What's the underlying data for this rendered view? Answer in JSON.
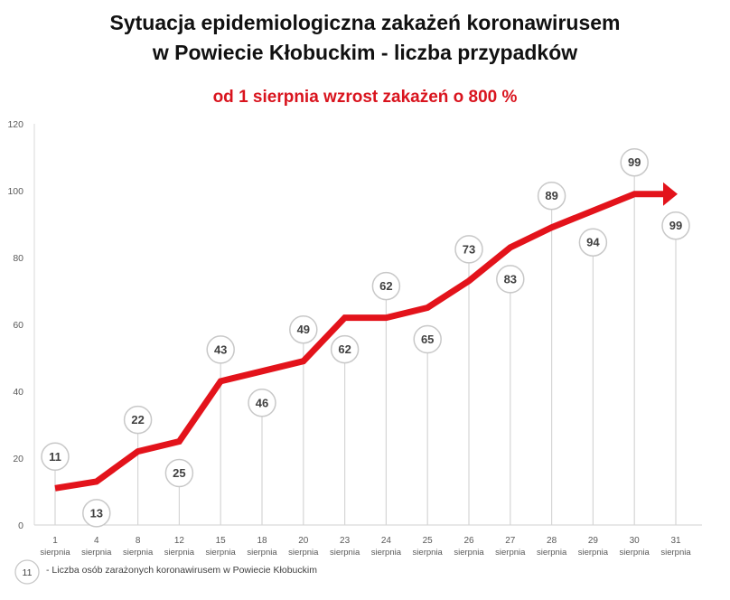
{
  "chart_data": {
    "type": "line",
    "title_line1": "Sytuacja epidemiologiczna zakażeń koronawirusem",
    "title_line2": "w Powiecie Kłobuckim - liczba przypadków",
    "subtitle": "od 1 sierpnia wzrost zakażeń o 800 %",
    "ylim": [
      0,
      120
    ],
    "yticks": [
      "0",
      "20",
      "40",
      "60",
      "80",
      "100",
      "120"
    ],
    "categories": [
      {
        "day": "1",
        "month": "sierpnia"
      },
      {
        "day": "4",
        "month": "sierpnia"
      },
      {
        "day": "8",
        "month": "sierpnia"
      },
      {
        "day": "12",
        "month": "sierpnia"
      },
      {
        "day": "15",
        "month": "sierpnia"
      },
      {
        "day": "18",
        "month": "sierpnia"
      },
      {
        "day": "20",
        "month": "sierpnia"
      },
      {
        "day": "23",
        "month": "sierpnia"
      },
      {
        "day": "24",
        "month": "sierpnia"
      },
      {
        "day": "25",
        "month": "sierpnia"
      },
      {
        "day": "26",
        "month": "sierpnia"
      },
      {
        "day": "27",
        "month": "sierpnia"
      },
      {
        "day": "28",
        "month": "sierpnia"
      },
      {
        "day": "29",
        "month": "sierpnia"
      },
      {
        "day": "30",
        "month": "sierpnia"
      },
      {
        "day": "31",
        "month": "sierpnia"
      }
    ],
    "series": [
      {
        "name": "Liczba osób zarażonych koronawirusem w Powiecie Kłobuckim",
        "values": [
          11,
          13,
          22,
          25,
          43,
          46,
          49,
          62,
          62,
          65,
          73,
          83,
          89,
          94,
          99,
          99
        ]
      }
    ],
    "label_values": [
      11,
      13,
      22,
      25,
      43,
      46,
      49,
      62,
      62,
      65,
      73,
      83,
      89,
      94,
      99,
      99
    ],
    "label_placement": [
      "above",
      "below",
      "above",
      "below",
      "above",
      "below",
      "above",
      "below",
      "above",
      "below",
      "above",
      "below",
      "above",
      "below",
      "above",
      "below"
    ],
    "line_color": "#e3131b",
    "legend": {
      "marker_value": "11",
      "text": "- Liczba osób zarażonych koronawirusem w Powiecie Kłobuckim"
    }
  }
}
